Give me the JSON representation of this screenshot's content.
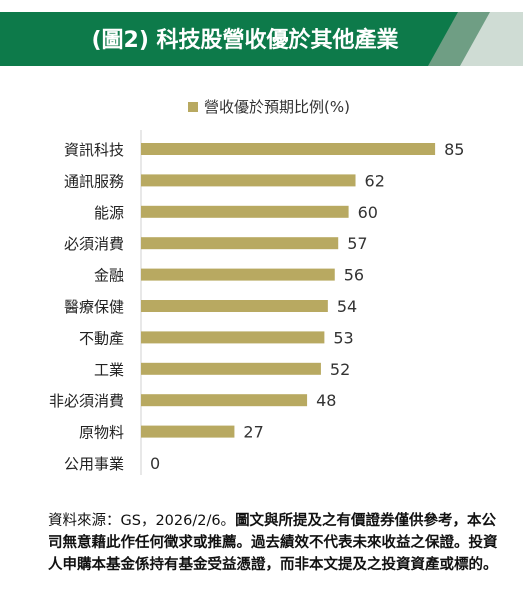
{
  "banner": {
    "title": "(圖2) 科技股營收優於其他產業",
    "colors": {
      "dark": "#0d7a4a",
      "mid": "#6f9e84",
      "light": "#cfdcd4"
    }
  },
  "chart_data": {
    "type": "bar",
    "orientation": "horizontal",
    "title": "",
    "xlabel": "",
    "ylabel": "",
    "legend": {
      "label": "營收優於預期比例(%)",
      "placement": "top-center"
    },
    "categories": [
      "資訊科技",
      "通訊服務",
      "能源",
      "必須消費",
      "金融",
      "醫療保健",
      "不動產",
      "工業",
      "非必須消費",
      "原物料",
      "公用事業"
    ],
    "series": [
      {
        "name": "營收優於預期比例(%)",
        "values": [
          85,
          62,
          60,
          57,
          56,
          54,
          53,
          52,
          48,
          27,
          0
        ],
        "color": "#b8a961"
      }
    ],
    "xlim": [
      0,
      100
    ],
    "grid": false,
    "data_labels": true
  },
  "footnote": {
    "source": "資料來源：GS，2026/2/6。",
    "disclaimer": "圖文與所提及之有價證券僅供參考，本公司無意藉此作任何徵求或推薦。過去績效不代表未來收益之保證。投資人申購本基金係持有基金受益憑證，而非本文提及之投資資產或標的。"
  }
}
